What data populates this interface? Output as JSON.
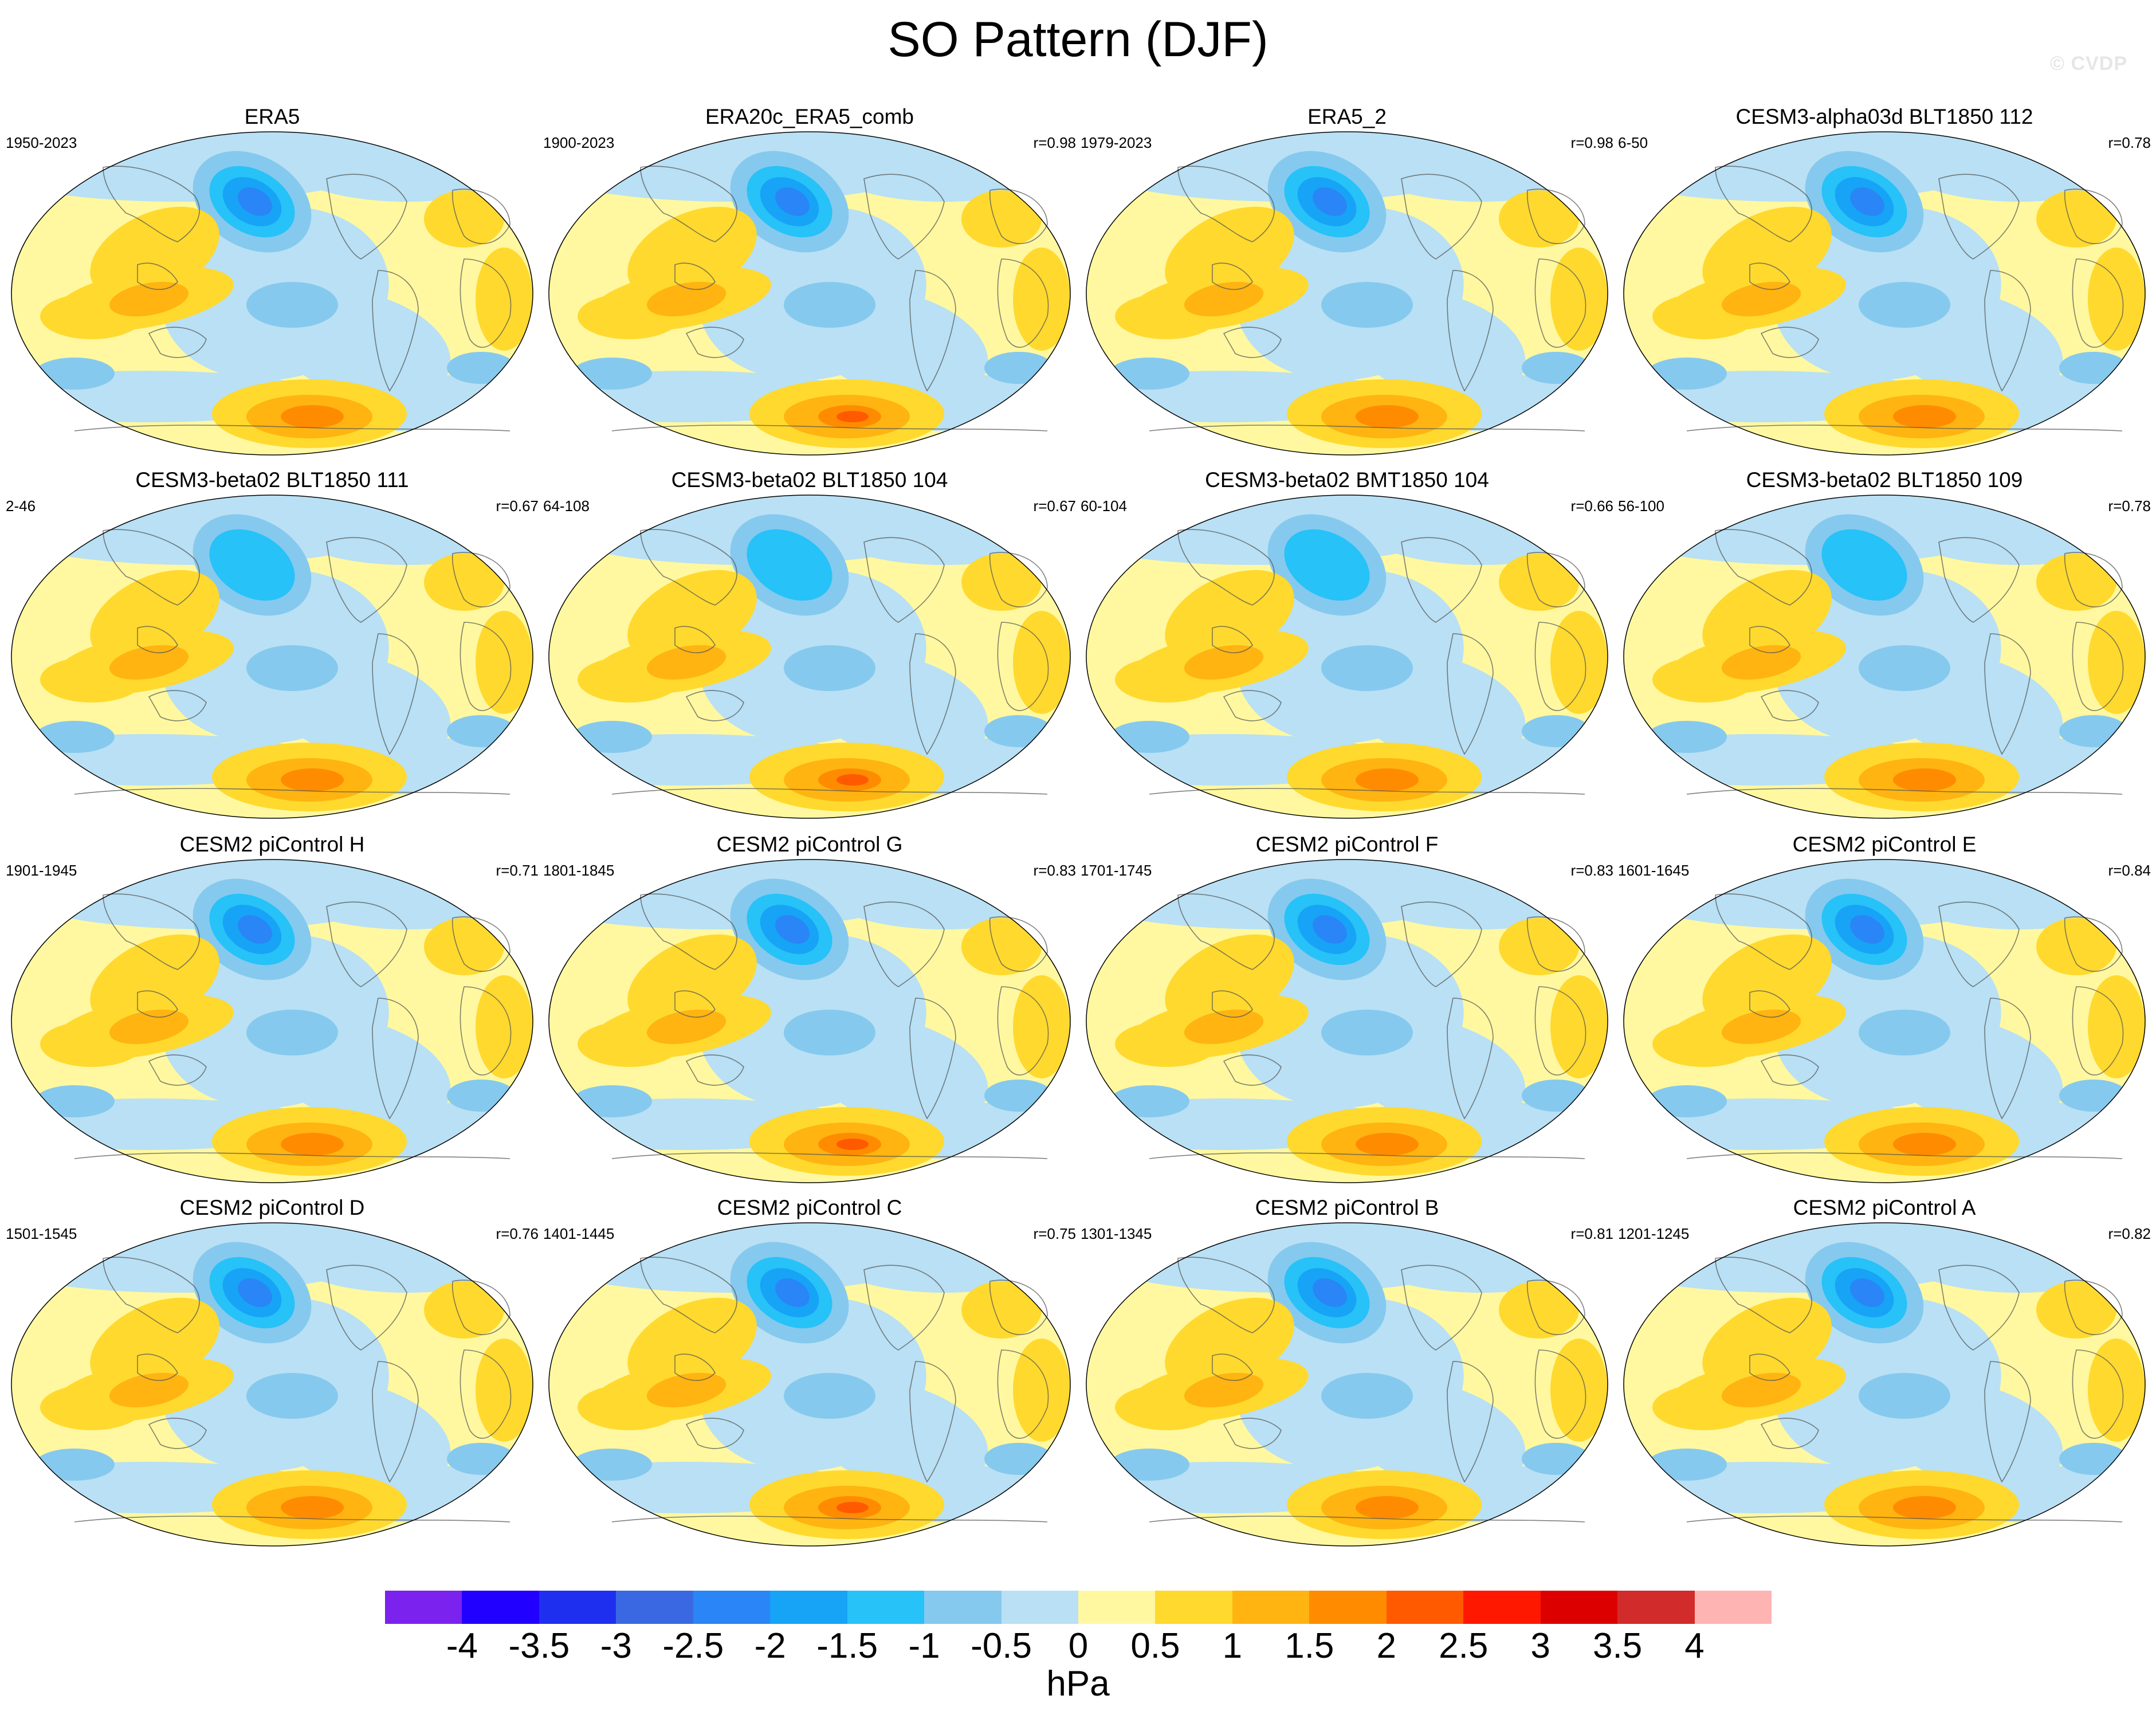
{
  "figure": {
    "title": "SO Pattern (DJF)",
    "watermark": "© CVDP",
    "units": "hPa"
  },
  "chart_data": {
    "type": "map-panel-grid",
    "variable": "SO Pattern (DJF)",
    "units": "hPa",
    "panels": [
      {
        "name": "ERA5",
        "period": "1950-2023",
        "r": ""
      },
      {
        "name": "ERA20c_ERA5_comb",
        "period": "1900-2023",
        "r": "r=0.98"
      },
      {
        "name": "ERA5_2",
        "period": "1979-2023",
        "r": "r=0.98"
      },
      {
        "name": "CESM3-alpha03d BLT1850 112",
        "period": "6-50",
        "r": "r=0.78"
      },
      {
        "name": "CESM3-beta02 BLT1850 111",
        "period": "2-46",
        "r": "r=0.67"
      },
      {
        "name": "CESM3-beta02 BLT1850 104",
        "period": "64-108",
        "r": "r=0.67"
      },
      {
        "name": "CESM3-beta02 BMT1850 104",
        "period": "60-104",
        "r": "r=0.66"
      },
      {
        "name": "CESM3-beta02 BLT1850 109",
        "period": "56-100",
        "r": "r=0.78"
      },
      {
        "name": "CESM2 piControl H",
        "period": "1901-1945",
        "r": "r=0.71"
      },
      {
        "name": "CESM2 piControl G",
        "period": "1801-1845",
        "r": "r=0.83"
      },
      {
        "name": "CESM2 piControl F",
        "period": "1701-1745",
        "r": "r=0.83"
      },
      {
        "name": "CESM2 piControl E",
        "period": "1601-1645",
        "r": "r=0.84"
      },
      {
        "name": "CESM2 piControl D",
        "period": "1501-1545",
        "r": "r=0.76"
      },
      {
        "name": "CESM2 piControl C",
        "period": "1401-1445",
        "r": "r=0.75"
      },
      {
        "name": "CESM2 piControl B",
        "period": "1301-1345",
        "r": "r=0.81"
      },
      {
        "name": "CESM2 piControl A",
        "period": "1201-1245",
        "r": "r=0.82"
      }
    ],
    "colorbar": {
      "ticks": [
        "-4",
        "-3.5",
        "-3",
        "-2.5",
        "-2",
        "-1.5",
        "-1",
        "-0.5",
        "0",
        "0.5",
        "1",
        "1.5",
        "2",
        "2.5",
        "3",
        "3.5",
        "4"
      ],
      "colors": [
        "#7b22ee",
        "#2200ff",
        "#1f2ff0",
        "#3a68e2",
        "#2a85f6",
        "#17a3f6",
        "#26c2f8",
        "#86c9ee",
        "#b9e0f4",
        "#fff8a0",
        "#ffd92e",
        "#ffb411",
        "#ff8c00",
        "#ff5a00",
        "#ff1800",
        "#dd0000",
        "#d22b2b",
        "#ffb4b4"
      ]
    }
  }
}
